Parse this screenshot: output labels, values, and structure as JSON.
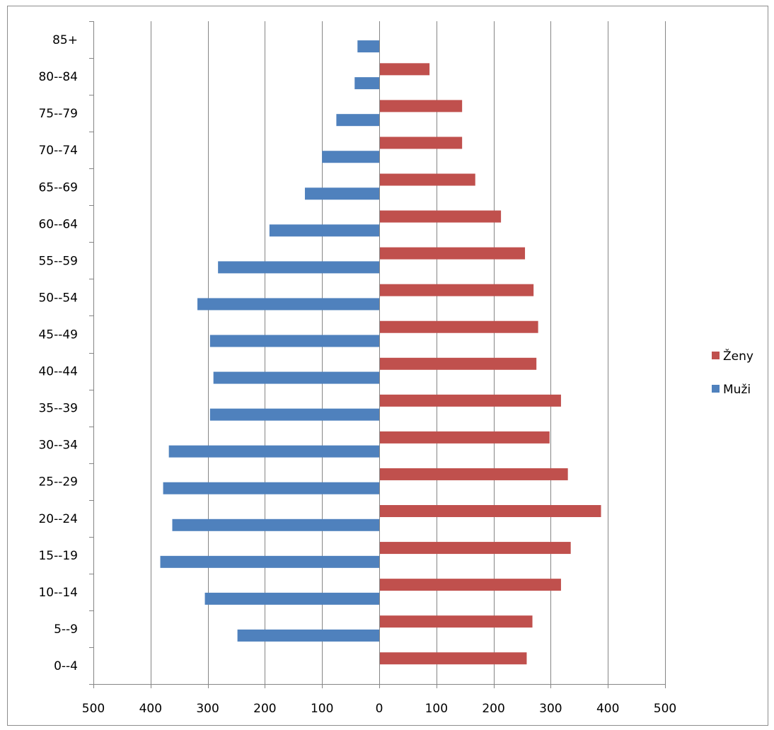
{
  "chart_data": {
    "type": "bar",
    "orientation": "horizontal",
    "subtype": "population-pyramid",
    "title": "",
    "xlabel": "",
    "ylabel": "",
    "categories": [
      "0--4",
      "5--9",
      "10--14",
      "15--19",
      "20--24",
      "25--29",
      "30--34",
      "35--39",
      "40--44",
      "45--49",
      "50--54",
      "55--59",
      "60--64",
      "65--69",
      "70--74",
      "75--79",
      "80--84",
      "85+"
    ],
    "series": [
      {
        "name": "Ženy",
        "color": "#c0504d",
        "side": "right",
        "values": [
          258,
          268,
          318,
          335,
          388,
          330,
          298,
          318,
          275,
          278,
          270,
          255,
          213,
          168,
          145,
          145,
          88,
          0
        ]
      },
      {
        "name": "Muži",
        "color": "#4f81bd",
        "side": "left",
        "values": [
          0,
          248,
          305,
          383,
          362,
          378,
          368,
          296,
          290,
          296,
          318,
          282,
          192,
          130,
          100,
          75,
          43,
          38
        ]
      }
    ],
    "xlim": [
      -500,
      500
    ],
    "x_ticks": [
      -500,
      -400,
      -300,
      -200,
      -100,
      0,
      100,
      200,
      300,
      400,
      500
    ],
    "x_tick_labels": [
      "500",
      "400",
      "300",
      "200",
      "100",
      "0",
      "100",
      "200",
      "300",
      "400",
      "500"
    ],
    "grid": "vertical major gridlines",
    "legend": "right"
  }
}
